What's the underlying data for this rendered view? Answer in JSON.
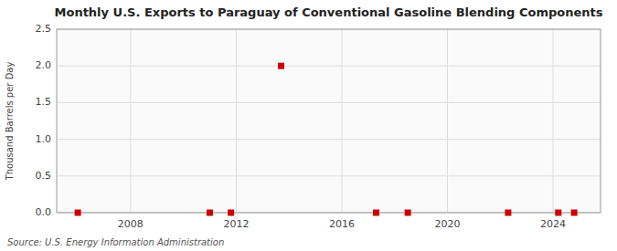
{
  "chart_data": {
    "type": "scatter",
    "title": "Monthly U.S. Exports to Paraguay of Conventional Gasoline Blending Components",
    "ylabel": "Thousand Barrels per Day",
    "source": "Source: U.S. Energy Information Administration",
    "x": [
      2006.0,
      2011.0,
      2011.8,
      2013.7,
      2017.3,
      2018.5,
      2022.3,
      2024.2,
      2024.8
    ],
    "values": [
      0.0,
      0.0,
      0.0,
      2.0,
      0.0,
      0.0,
      0.0,
      0.0,
      0.0
    ],
    "color": "#cc0000",
    "marker": "square",
    "xlim": [
      2005.2,
      2025.8
    ],
    "xticks": [
      2008,
      2012,
      2016,
      2020,
      2024
    ],
    "ylim": [
      0,
      2.5
    ],
    "yticks": [
      {
        "value": 0.0,
        "label": "0.0"
      },
      0.5,
      {
        "value": 1.0,
        "label": "1.0"
      },
      1.5,
      {
        "value": 2.0,
        "label": "2.0"
      },
      2.5
    ],
    "grid": true
  }
}
